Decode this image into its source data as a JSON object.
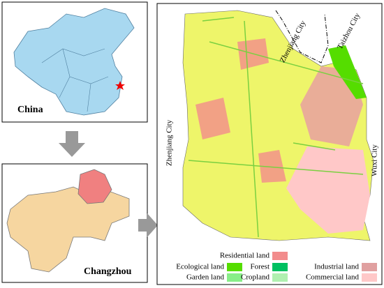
{
  "china": {
    "label": "China"
  },
  "changzhou": {
    "label": "Changzhou"
  },
  "study_area": {
    "city_labels": [
      "Zhenjiang City",
      "Taizhou City",
      "Zhenjiang City",
      "Wuxi City"
    ],
    "legend": [
      {
        "label": "Residential land",
        "color": "#f28c8c"
      },
      {
        "label": "Ecological land",
        "color": "#55dd00"
      },
      {
        "label": "Forest",
        "color": "#00c060"
      },
      {
        "label": "Industrial land",
        "color": "#e0a0a0"
      },
      {
        "label": "Garden land",
        "color": "#88ee88"
      },
      {
        "label": "Cropland",
        "color": "#b0f0b0"
      },
      {
        "label": "Commercial land",
        "color": "#ffc8c8"
      }
    ]
  }
}
